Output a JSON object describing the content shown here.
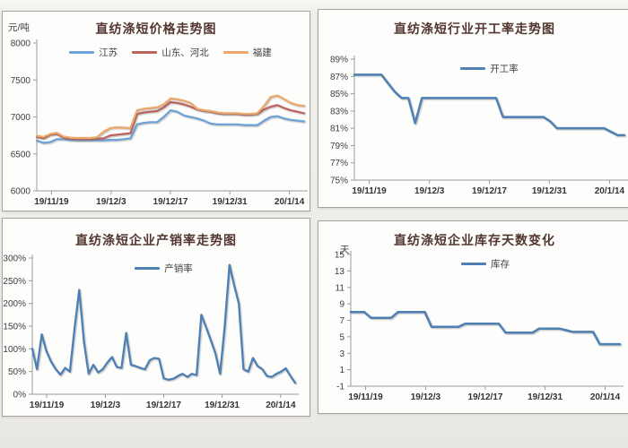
{
  "page": {
    "description_labels": {
      "date_range_start": "19/11/19",
      "date_range_end": "20/1/14"
    }
  },
  "chart_data": [
    {
      "type": "line",
      "title": "直纺涤短价格走势图",
      "y_unit": "元/吨",
      "grid": false,
      "legend_position": "top",
      "x_tick_labels": [
        "19/11/19",
        "19/12/3",
        "19/12/17",
        "19/12/31",
        "20/1/14"
      ],
      "ylim": [
        6000,
        8000
      ],
      "ytick_values": [
        6000,
        6500,
        7000,
        7500,
        8000
      ],
      "ytick_labels": [
        "6000",
        "6500",
        "7000",
        "7500",
        "8000"
      ],
      "series": [
        {
          "name": "江苏",
          "color": "#6ca2d9",
          "values": [
            6680,
            6650,
            6660,
            6700,
            6700,
            6690,
            6685,
            6685,
            6685,
            6685,
            6685,
            6690,
            6690,
            6700,
            6710,
            6900,
            6920,
            6930,
            6930,
            7000,
            7090,
            7070,
            7020,
            7000,
            6980,
            6950,
            6910,
            6900,
            6900,
            6900,
            6900,
            6890,
            6890,
            6890,
            6950,
            7000,
            7010,
            6980,
            6960,
            6950,
            6940
          ]
        },
        {
          "name": "山东、河北",
          "color": "#be625e",
          "values": [
            6730,
            6710,
            6760,
            6770,
            6720,
            6705,
            6700,
            6700,
            6700,
            6705,
            6710,
            6750,
            6760,
            6770,
            6780,
            7040,
            7060,
            7070,
            7080,
            7130,
            7200,
            7190,
            7170,
            7140,
            7100,
            7080,
            7070,
            7050,
            7040,
            7040,
            7040,
            7030,
            7030,
            7040,
            7100,
            7140,
            7160,
            7120,
            7090,
            7070,
            7050
          ]
        },
        {
          "name": "福建",
          "color": "#eca86a",
          "values": [
            6745,
            6730,
            6770,
            6785,
            6735,
            6720,
            6715,
            6715,
            6715,
            6725,
            6800,
            6850,
            6860,
            6855,
            6850,
            7090,
            7110,
            7120,
            7130,
            7170,
            7250,
            7240,
            7220,
            7190,
            7110,
            7090,
            7080,
            7060,
            7050,
            7050,
            7050,
            7040,
            7040,
            7050,
            7150,
            7270,
            7290,
            7240,
            7190,
            7160,
            7150
          ]
        }
      ]
    },
    {
      "type": "line",
      "title": "直纺涤短行业开工率走势图",
      "y_unit": "",
      "grid": false,
      "legend_position": "top",
      "x_tick_labels": [
        "19/11/19",
        "19/12/3",
        "19/12/17",
        "19/12/31",
        "20/1/14"
      ],
      "ylim": [
        75,
        89
      ],
      "ytick_values": [
        75,
        77,
        79,
        81,
        83,
        85,
        87,
        89
      ],
      "ytick_labels": [
        "75%",
        "77%",
        "79%",
        "81%",
        "83%",
        "85%",
        "87%",
        "89%"
      ],
      "series": [
        {
          "name": "开工率",
          "color": "#4e80b4",
          "values": [
            87.2,
            87.2,
            87.2,
            87.2,
            87.2,
            86.2,
            85.2,
            84.5,
            84.5,
            81.6,
            84.5,
            84.5,
            84.5,
            84.5,
            84.5,
            84.5,
            84.5,
            84.5,
            84.5,
            84.5,
            84.5,
            84.5,
            82.3,
            82.3,
            82.3,
            82.3,
            82.3,
            82.3,
            82.3,
            81.8,
            81,
            81,
            81,
            81,
            81,
            81,
            81,
            81,
            80.6,
            80.2,
            80.2
          ]
        }
      ]
    },
    {
      "type": "line",
      "title": "直纺涤短企业产销率走势图",
      "y_unit": "",
      "grid": false,
      "legend_position": "top",
      "x_tick_labels": [
        "19/11/19",
        "19/12/3",
        "19/12/17",
        "19/12/31",
        "20/1/14"
      ],
      "ylim": [
        0,
        300
      ],
      "ytick_values": [
        0,
        50,
        100,
        150,
        200,
        250,
        300
      ],
      "ytick_labels": [
        "0%",
        "50%",
        "100%",
        "150%",
        "200%",
        "250%",
        "300%"
      ],
      "series": [
        {
          "name": "产销率",
          "color": "#4e80b4",
          "values": [
            100,
            55,
            132,
            95,
            72,
            55,
            43,
            58,
            50,
            145,
            230,
            115,
            45,
            65,
            48,
            55,
            70,
            82,
            60,
            58,
            135,
            65,
            62,
            58,
            55,
            75,
            80,
            78,
            35,
            32,
            34,
            40,
            45,
            38,
            45,
            42,
            175,
            148,
            120,
            90,
            45,
            150,
            285,
            240,
            200,
            55,
            50,
            80,
            62,
            55,
            40,
            38,
            45,
            50,
            57,
            40,
            25
          ]
        }
      ]
    },
    {
      "type": "line",
      "title": "直纺涤短企业库存天数变化",
      "y_unit": "天",
      "grid": false,
      "legend_position": "top",
      "x_tick_labels": [
        "19/11/19",
        "19/12/3",
        "19/12/17",
        "19/12/31",
        "20/1/14"
      ],
      "ylim": [
        -1,
        15
      ],
      "ytick_values": [
        -1,
        1,
        3,
        5,
        7,
        9,
        11,
        13,
        15
      ],
      "ytick_labels": [
        "-1",
        "1",
        "3",
        "5",
        "7",
        "9",
        "11",
        "13",
        "15"
      ],
      "series": [
        {
          "name": "库存",
          "color": "#4e80b4",
          "values": [
            8,
            8,
            8,
            7.3,
            7.3,
            7.3,
            7.3,
            8,
            8,
            8,
            8,
            8,
            6.2,
            6.2,
            6.2,
            6.2,
            6.2,
            6.6,
            6.6,
            6.6,
            6.6,
            6.6,
            6.6,
            5.5,
            5.5,
            5.5,
            5.5,
            5.5,
            6,
            6,
            6,
            6,
            5.8,
            5.6,
            5.6,
            5.6,
            5.6,
            4.1,
            4.1,
            4.1,
            4.1
          ]
        }
      ]
    }
  ]
}
